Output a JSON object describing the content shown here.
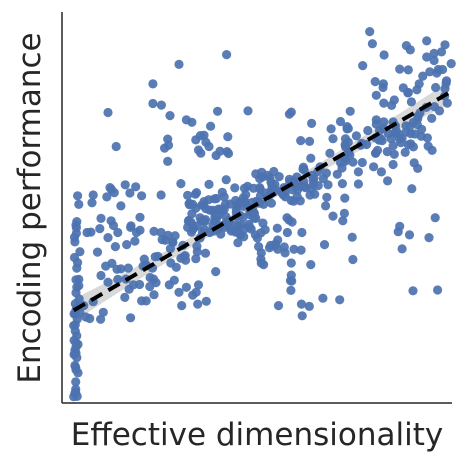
{
  "chart_data": {
    "type": "scatter",
    "title": "",
    "xlabel": "Effective dimensionality",
    "ylabel": "Encoding performance",
    "xlim": [
      0,
      100
    ],
    "ylim": [
      0,
      100
    ],
    "x_ticks": [],
    "y_ticks": [],
    "grid": false,
    "legend": "none",
    "point_color": "#4c72b0",
    "fit_line_color": "#000000",
    "fit_band_color": "#bfbfbf",
    "fit_line": {
      "x": [
        3,
        99
      ],
      "y_start": 23.7,
      "y_end": 79.2
    },
    "series": [
      {
        "x": [
          3.3,
          4.1,
          3.5,
          3.0,
          3.3,
          3.5,
          3.1,
          3.6,
          3.9,
          3.3,
          3.5,
          3.0,
          3.5,
          3.1,
          3.8,
          3.6,
          3.6,
          4.1,
          3.4,
          3.6,
          3.3,
          3.4,
          3.8,
          3.6,
          3.4,
          3.9,
          3.1,
          3.3,
          4.6,
          3.8,
          4.3,
          3.8,
          3.2,
          3.3,
          3.2,
          3.8,
          4.3,
          4.0,
          3.7,
          3.6,
          4.0,
          4.3,
          3.8,
          3.6,
          3.6,
          4.4,
          5.6,
          6.1,
          7.1,
          8.0,
          9.9,
          10.6,
          11.8,
          12.8,
          14.3,
          15.1,
          16.1,
          17.2,
          18.3,
          18.7,
          19.9,
          21.6,
          22.6,
          23.9,
          24.6,
          25.7,
          26.5,
          28.4,
          29.0,
          31.0,
          32.2,
          33.8,
          34.5,
          35.4,
          36.4,
          37.6,
          39.1,
          40.7,
          41.1,
          42.9,
          43.1,
          44.3,
          46.5,
          46.9,
          47.6,
          49.1,
          49.9,
          51.7,
          52.7,
          53.2,
          54.3,
          56.3,
          56.8,
          58.4,
          59.6,
          61.1,
          61.9,
          63.8,
          64.0,
          65.6,
          66.2,
          67.8,
          68.7,
          70.6,
          71.4,
          72.6,
          73.5,
          74.6,
          75.5,
          76.9,
          78.1,
          78.4,
          80.4,
          80.9,
          82.1,
          83.7,
          84.5,
          85.4,
          86.6,
          88.2,
          89.4,
          90.1,
          91.3,
          91.8,
          93.4,
          94.8,
          95.5,
          96.8,
          98.1,
          98.8,
          35.8,
          34.6,
          39.0,
          33.5,
          36.3,
          40.1,
          47.2,
          41.6,
          32.8,
          44.7,
          47.9,
          48.2,
          41.6,
          46.8,
          45.6,
          39.2,
          44.8,
          36.6,
          46.4,
          41.1,
          48.9,
          44.8,
          42.7,
          39.1,
          47.0,
          32.4,
          34.2,
          41.9,
          49.3,
          35.8,
          40.0,
          32.6,
          44.9,
          44.8,
          39.6,
          32.5,
          33.2,
          47.1,
          33.5,
          35.4,
          38.7,
          36.8,
          42.0,
          33.1,
          40.6,
          37.9,
          43.4,
          40.1,
          44.7,
          46.5,
          45.3,
          46.6,
          36.1,
          38.7,
          34.3,
          45.1,
          39.2,
          39.6,
          48.1,
          44.5,
          40.8,
          37.9,
          45.6,
          34.7,
          48.8,
          49.7,
          33.5,
          36.6,
          42.0,
          33.3,
          36.9,
          41.8,
          32.2,
          43.2,
          60.3,
          59.4,
          68.2,
          53.7,
          56.9,
          53.3,
          58.8,
          50.1,
          64.1,
          53.8,
          54.7,
          57.3,
          59.4,
          64.8,
          65.7,
          50.7,
          53.9,
          67.6,
          50.8,
          53.6,
          59.1,
          62.4,
          54.6,
          62.1,
          50.6,
          56.5,
          58.3,
          64.4,
          62.0,
          51.4,
          54.3,
          61.8,
          50.9,
          53.8,
          63.6,
          67.0,
          52.1,
          67.9,
          55.7,
          60.0,
          56.4,
          60.9,
          62.2,
          53.8,
          57.2,
          50.7,
          64.4,
          60.2,
          64.6,
          60.4,
          80.6,
          86.2,
          92.1,
          93.9,
          91.1,
          81.3,
          80.6,
          89.2,
          91.2,
          92.2,
          88.8,
          84.9,
          87.2,
          88.2,
          90.5,
          81.3,
          93.7,
          90.1,
          81.7,
          88.0,
          84.9,
          89.4,
          94.9,
          84.4,
          82.5,
          85.5,
          80.4,
          85.7,
          82.4,
          81.4,
          45.7,
          54.8,
          59.5,
          46.8,
          55.3,
          55.2,
          51.0,
          45.8,
          51.5,
          51.1,
          50.1,
          61.5,
          49.6,
          49.2,
          53.2,
          58.2,
          44.5,
          55.3,
          59.0,
          57.8,
          44.3,
          54.6,
          57.2,
          45.1,
          61.3,
          48.1,
          53.5,
          46.6,
          48.5,
          50.4,
          87.5,
          85.2,
          93.5,
          95.4,
          96.1,
          97.6,
          98.2,
          80.6,
          88.3,
          96.5,
          88.8,
          98.6,
          98.5,
          89.6,
          99.8,
          88.7,
          95.4,
          97.3,
          82.3,
          93.5,
          95.8,
          80.3,
          92.5,
          82.6,
          98.2,
          91.0,
          88.8,
          89.3,
          82.4,
          79.6,
          81.9,
          80.4,
          83.4,
          84.9,
          77.0,
          69.5,
          71.9,
          76.0,
          72.6,
          71.8,
          76.0,
          72.7,
          73.5,
          76.6,
          83.5,
          72.6,
          73.8,
          79.9,
          85.2,
          72.7,
          7.4,
          20.0,
          17.4,
          14.3,
          6.4,
          3.7,
          11.5,
          12.3,
          13.4,
          11.8,
          15.1,
          20.4,
          12.7,
          12.6,
          18.9,
          9.7,
          10.0,
          7.7,
          17.7,
          20.0,
          17.0,
          14.1,
          13.7,
          16.4,
          19.1,
          13.2,
          9.1,
          11.2,
          10.0,
          4.6,
          28.4,
          27.2,
          24.1,
          29.3,
          31.2,
          34.7,
          27.9,
          27.8,
          21.1,
          23.6,
          31.9,
          22.5,
          20.4,
          20.8,
          34.4,
          28.8,
          31.6,
          21.6,
          31.7,
          21.6,
          33.5,
          30.7,
          34.8,
          23.6,
          23.5,
          35.0,
          27.5,
          30.0,
          30.5,
          23.2,
          58.9,
          63.4,
          61.4,
          71.2,
          63.8,
          66.9,
          58.8,
          74.6,
          58.6,
          58.7,
          71.4,
          61.2,
          73.1,
          73.9,
          73.1,
          64.0,
          63.5,
          58.8,
          69.0,
          73.4,
          42.3,
          38.1,
          33.3,
          39.5,
          27.1,
          42.7,
          36.4,
          39.9,
          27.7,
          31.9,
          37.7,
          35.0,
          27.3,
          36.9,
          35.6,
          27.1,
          40.5,
          42.5,
          34.3,
          35.5,
          90.0,
          34.3,
          51.7,
          74.4,
          61.6,
          36.8,
          37.0,
          49.3,
          52.1,
          49.7,
          58.3,
          72.5,
          46.0,
          78.9,
          77.1,
          86.6,
          89.1,
          86.6,
          91.2,
          55.5,
          8.0,
          25.4,
          58.8,
          95.7,
          39.4,
          30.5,
          90.3,
          87.2,
          86.2,
          72.4,
          51.2,
          23.3,
          82.5,
          94.3,
          16.2,
          25.4,
          23.3,
          16.6,
          91.6,
          25.5,
          17.6,
          67.3,
          51.0,
          72.0,
          32.7,
          89.7,
          11.8,
          30.0,
          47.7,
          37.7,
          94.1,
          69.5,
          73.4,
          86.9,
          51.1,
          42.2,
          17.6,
          57.7,
          26.3,
          42.1,
          13.9,
          57.0,
          36.0,
          96.3
        ],
        "y": [
          9.6,
          7.7,
          5.4,
          1.6,
          2.5,
          9.1,
          12.4,
          8.5,
          1.7,
          13.5,
          3.5,
          19.8,
          2.7,
          16.0,
          17.2,
          23.8,
          12.8,
          15.0,
          20.0,
          14.3,
          12.7,
          18.4,
          11.6,
          15.4,
          25.4,
          21.4,
          22.8,
          23.0,
          23.1,
          29.6,
          31.6,
          34.5,
          37.2,
          41.2,
          42.4,
          46.4,
          50.8,
          53.0,
          43.4,
          45.5,
          35.9,
          30.0,
          24.4,
          28.2,
          31.5,
          26.6,
          24.9,
          22.0,
          21.6,
          25.9,
          21.4,
          23.2,
          30.9,
          35.7,
          31.6,
          34.3,
          27.0,
          29.1,
          30.2,
          41.4,
          30.3,
          35.3,
          32.1,
          37.4,
          37.5,
          41.8,
          41.6,
          41.1,
          42.8,
          40.3,
          53.1,
          44.7,
          53.8,
          42.2,
          51.5,
          52.0,
          46.6,
          43.2,
          49.1,
          46.4,
          50.9,
          55.0,
          50.3,
          51.6,
          55.4,
          54.9,
          51.6,
          50.8,
          58.2,
          53.2,
          59.2,
          54.0,
          53.2,
          56.5,
          56.2,
          51.7,
          60.3,
          62.6,
          54.8,
          59.2,
          60.4,
          58.8,
          63.9,
          58.5,
          61.5,
          62.3,
          64.3,
          61.6,
          68.3,
          66.4,
          66.1,
          69.7,
          63.9,
          64.6,
          67.1,
          68.9,
          76.1,
          69.1,
          67.5,
          69.3,
          68.9,
          71.8,
          73.4,
          74.2,
          75.6,
          72.8,
          75.8,
          74.7,
          78.5,
          76.7,
          46.5,
          40.1,
          44.0,
          45.3,
          50.7,
          48.0,
          50.9,
          49.6,
          51.0,
          49.6,
          45.7,
          48.9,
          52.7,
          54.9,
          48.0,
          47.6,
          44.2,
          46.4,
          47.5,
          53.9,
          49.6,
          47.7,
          46.7,
          52.2,
          51.2,
          46.5,
          53.4,
          50.8,
          48.5,
          50.6,
          44.4,
          51.0,
          50.6,
          44.6,
          47.1,
          46.7,
          43.7,
          53.3,
          44.5,
          47.4,
          45.4,
          46.9,
          47.7,
          46.2,
          49.6,
          43.6,
          44.0,
          49.6,
          48.7,
          52.5,
          45.5,
          51.4,
          46.7,
          49.3,
          49.8,
          50.8,
          48.5,
          52.3,
          48.2,
          51.8,
          45.3,
          49.3,
          51.3,
          45.3,
          51.3,
          47.2,
          50.8,
          44.3,
          46.0,
          48.4,
          49.7,
          44.9,
          44.9,
          44.6,
          52.8,
          56.8,
          55.8,
          51.1,
          55.1,
          57.6,
          51.8,
          51.3,
          58.2,
          54.4,
          54.6,
          52.7,
          51.6,
          53.4,
          55.6,
          55.1,
          53.8,
          50.4,
          54.7,
          56.5,
          54.5,
          55.1,
          55.9,
          59.6,
          51.1,
          53.6,
          57.2,
          57.0,
          56.6,
          57.8,
          54.0,
          59.8,
          53.0,
          54.7,
          53.2,
          57.4,
          53.7,
          52.6,
          57.9,
          55.4,
          53.8,
          55.5,
          55.4,
          55.8,
          53.7,
          57.4,
          55.8,
          57.8,
          57.5,
          54.5,
          71.3,
          68.9,
          68.2,
          65.7,
          71.2,
          67.2,
          72.4,
          70.8,
          72.7,
          70.0,
          66.0,
          71.9,
          67.7,
          70.9,
          68.8,
          67.5,
          67.8,
          65.5,
          67.6,
          64.1,
          65.8,
          66.3,
          64.6,
          67.6,
          71.9,
          70.9,
          67.8,
          69.6,
          70.2,
          69.7,
          43.1,
          40.7,
          39.3,
          44.5,
          41.7,
          44.7,
          43.5,
          43.0,
          46.0,
          38.4,
          42.2,
          43.6,
          43.0,
          47.3,
          39.7,
          46.8,
          43.7,
          39.3,
          46.3,
          43.6,
          45.4,
          40.3,
          38.4,
          41.0,
          39.1,
          45.0,
          40.3,
          42.5,
          44.5,
          40.0,
          80.6,
          77.5,
          92.6,
          89.4,
          84.4,
          85.3,
          80.4,
          78.7,
          91.4,
          85.3,
          79.4,
          82.4,
          81.8,
          77.0,
          86.8,
          79.3,
          87.6,
          89.8,
          80.7,
          88.5,
          80.7,
          82.2,
          83.6,
          89.0,
          91.6,
          80.1,
          85.2,
          90.3,
          81.6,
          91.9,
          59.1,
          63.9,
          64.3,
          61.0,
          61.5,
          67.6,
          56.1,
          56.0,
          66.1,
          60.1,
          59.1,
          65.5,
          64.0,
          65.9,
          56.8,
          61.8,
          63.4,
          60.4,
          63.6,
          67.6,
          43.7,
          47.5,
          53.7,
          43.6,
          43.6,
          44.8,
          52.7,
          55.1,
          53.8,
          42.3,
          50.4,
          53.0,
          54.6,
          46.6,
          55.3,
          44.6,
          47.2,
          51.2,
          45.3,
          44.2,
          34.5,
          34.2,
          40.0,
          31.7,
          43.6,
          45.4,
          38.6,
          35.0,
          32.6,
          38.7,
          41.1,
          42.9,
          30.8,
          34.7,
          37.4,
          38.7,
          35.8,
          39.5,
          36.8,
          43.9,
          29.6,
          29.8,
          26.1,
          35.0,
          28.3,
          31.4,
          37.7,
          35.1,
          36.5,
          26.1,
          27.6,
          24.9,
          25.3,
          27.7,
          31.7,
          30.2,
          30.2,
          28.3,
          37.0,
          34.5,
          31.2,
          24.7,
          25.3,
          26.4,
          35.4,
          26.8,
          32.7,
          36.7,
          31.3,
          28.8,
          72.0,
          67.1,
          70.1,
          74.6,
          70.7,
          71.5,
          66.9,
          74.4,
          70.1,
          70.2,
          64.3,
          70.8,
          71.8,
          63.3,
          67.5,
          63.8,
          68.5,
          74.6,
          73.5,
          72.4,
          65.6,
          64.7,
          65.9,
          66.7,
          63.9,
          61.8,
          64.4,
          68.1,
          67.3,
          68.4,
          28.7,
          36.9,
          35.4,
          42.4,
          22.3,
          38.3,
          26.0,
          48.5,
          44.3,
          58.6,
          73.9,
          52.4,
          45.6,
          95.0,
          86.3,
          85.4,
          43.0,
          45.2,
          60.0,
          24.9,
          53.2,
          43.6,
          35.8,
          47.4,
          33.6,
          56.1,
          61.4,
          39.4,
          43.8,
          48.5,
          59.0,
          76.6,
          76.7,
          84.7,
          55.8,
          53.2,
          81.6,
          40.5,
          81.6,
          76.2,
          21.8,
          40.5,
          36.8,
          46.6,
          50.7,
          54.8,
          74.3,
          86.6,
          74.7,
          55.9,
          42.3,
          47.8,
          66.7,
          66.6,
          35.8,
          89.1,
          44.9,
          47.4,
          65.2,
          57.1,
          65.6,
          39.9,
          43.6,
          28.9
        ]
      }
    ]
  }
}
